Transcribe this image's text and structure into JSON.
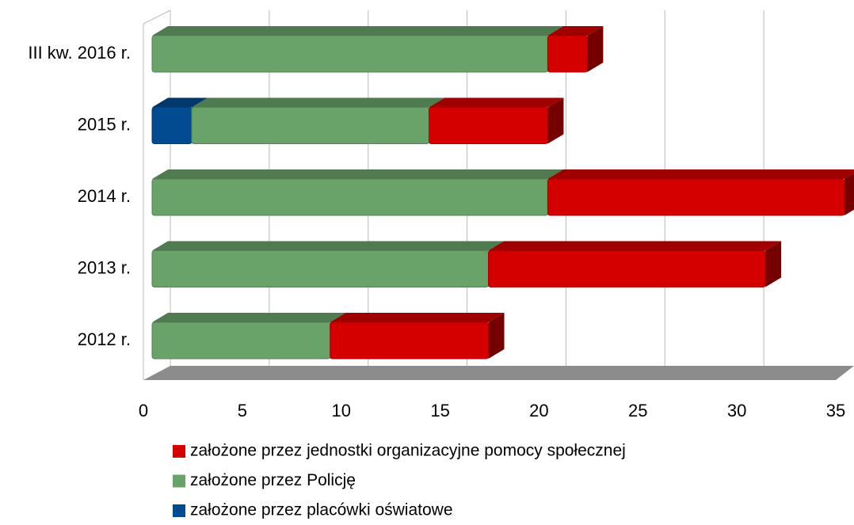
{
  "chart_data": {
    "type": "bar3d-stacked-horizontal",
    "categories": [
      "III kw. 2016 r.",
      "2015 r.",
      "2014 r.",
      "2013 r.",
      "2012 r."
    ],
    "series": [
      {
        "name": "założone przez placówki oświatowe",
        "color": "#004a8f",
        "values": [
          0,
          2,
          0,
          0,
          0
        ]
      },
      {
        "name": "założone przez Policję",
        "color": "#6aa36a",
        "values": [
          20,
          12,
          20,
          17,
          9
        ]
      },
      {
        "name": "założone przez jednostki organizacyjne pomocy społecznej",
        "color": "#d40000",
        "values": [
          2,
          6,
          15,
          14,
          8
        ]
      }
    ],
    "xlim": [
      0,
      35
    ],
    "xticks": [
      0,
      5,
      10,
      15,
      20,
      25,
      30,
      35
    ],
    "grid": true
  }
}
